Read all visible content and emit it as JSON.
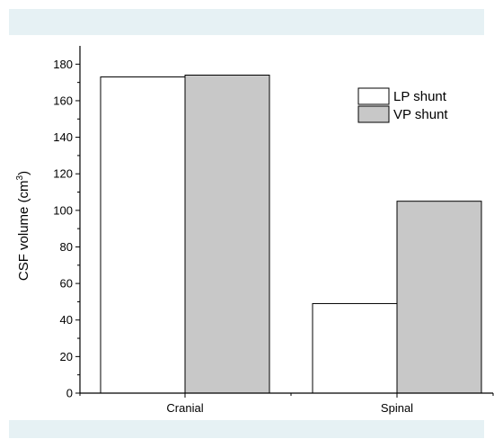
{
  "chart_data": {
    "type": "bar",
    "categories": [
      "Cranial",
      "Spinal"
    ],
    "series": [
      {
        "name": "LP shunt",
        "values": [
          173,
          49
        ],
        "color": "#ffffff"
      },
      {
        "name": "VP shunt",
        "values": [
          174,
          105
        ],
        "color": "#c8c8c8"
      }
    ],
    "ylabel": "CSF volume (cm³)",
    "ylabel_base": "CSF volume (cm",
    "ylabel_sup": "3",
    "ylabel_end": ")",
    "ylim": [
      0,
      190
    ],
    "yticks": [
      0,
      20,
      40,
      60,
      80,
      100,
      120,
      140,
      160,
      180
    ],
    "grid": false,
    "legend_position": "top-right"
  }
}
